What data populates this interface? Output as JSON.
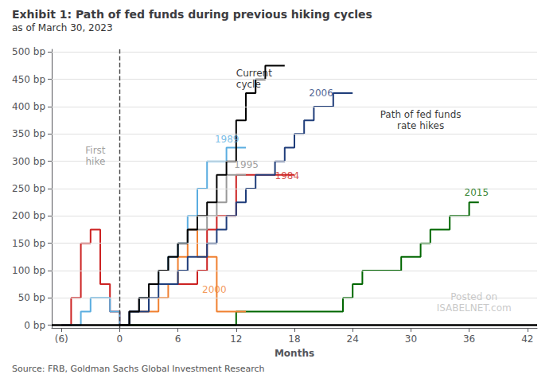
{
  "chart_data": {
    "type": "step",
    "title": "Exhibit 1: Path of fed funds during previous hiking cycles",
    "subtitle": "as of March 30, 2023",
    "source": "Source: FRB, Goldman Sachs Global Investment Research",
    "xlabel": "Months",
    "xlim": [
      -7,
      43
    ],
    "ylim": [
      -5,
      505
    ],
    "xticks": [
      {
        "value": -6,
        "label": "(6)"
      },
      0,
      6,
      12,
      18,
      24,
      30,
      36,
      42
    ],
    "yticks": [
      {
        "value": 0,
        "label": "0 bp"
      },
      {
        "value": 50,
        "label": "50 bp"
      },
      {
        "value": 100,
        "label": "100 bp"
      },
      {
        "value": 150,
        "label": "150 bp"
      },
      {
        "value": 200,
        "label": "200 bp"
      },
      {
        "value": 250,
        "label": "250 bp"
      },
      {
        "value": 300,
        "label": "300 bp"
      },
      {
        "value": 350,
        "label": "350 bp"
      },
      {
        "value": 400,
        "label": "400 bp"
      },
      {
        "value": 450,
        "label": "450 bp"
      },
      {
        "value": 500,
        "label": "500 bp"
      }
    ],
    "grid": true,
    "vline_x": 0,
    "hline_y": 0,
    "series": [
      {
        "color": "#006600",
        "x": [
          0,
          1,
          2,
          3,
          4,
          5,
          6,
          7,
          8,
          9,
          10,
          11,
          12,
          13,
          14,
          15,
          16,
          17,
          18,
          19,
          20,
          21,
          22,
          23,
          24,
          25,
          26,
          27,
          28,
          29,
          30,
          31,
          32,
          33,
          34,
          35,
          36,
          37
        ],
        "values": [
          0,
          0,
          0,
          0,
          0,
          0,
          0,
          0,
          0,
          0,
          0,
          0,
          25,
          25,
          25,
          25,
          25,
          25,
          25,
          25,
          25,
          25,
          25,
          50,
          75,
          100,
          100,
          100,
          100,
          125,
          125,
          150,
          175,
          175,
          200,
          200,
          225,
          225
        ],
        "annotation": {
          "text": "2015",
          "x": 35.5,
          "y": 232,
          "color": "#006600"
        }
      },
      {
        "color": "#f08030",
        "x": [
          0,
          1,
          2,
          3,
          4,
          5,
          6,
          7,
          8,
          9,
          10,
          11,
          12,
          13
        ],
        "values": [
          0,
          25,
          25,
          25,
          50,
          75,
          125,
          175,
          125,
          125,
          25,
          25,
          25,
          25
        ],
        "annotation": {
          "text": "2000",
          "x": 8.5,
          "y": 55,
          "color": "#f08030"
        }
      },
      {
        "color": "#cc2222",
        "x": [
          -6,
          -5,
          -4,
          -3,
          -2,
          -1,
          0,
          1,
          2,
          3,
          4,
          5,
          6,
          7,
          8,
          9,
          10,
          11,
          12,
          13,
          14,
          15,
          16,
          17,
          18
        ],
        "values": [
          0,
          50,
          150,
          175,
          75,
          25,
          0,
          25,
          50,
          75,
          75,
          75,
          75,
          75,
          100,
          175,
          200,
          200,
          275,
          275,
          275,
          275,
          275,
          275,
          275
        ],
        "annotation": {
          "text": "1984",
          "x": 16.0,
          "y": 263,
          "color": "#cc2222"
        }
      },
      {
        "color": "#999999",
        "x": [
          0,
          1,
          2,
          3,
          4,
          5,
          6,
          7,
          8,
          9,
          10,
          11,
          12,
          13
        ],
        "values": [
          0,
          25,
          50,
          75,
          100,
          125,
          150,
          175,
          175,
          200,
          225,
          275,
          275,
          275
        ],
        "annotation": {
          "text": "1995",
          "x": 11.8,
          "y": 283,
          "color": "#888888"
        }
      },
      {
        "color": "#5aade0",
        "x": [
          -6,
          -5,
          -4,
          -3,
          -2,
          -1,
          0,
          1,
          2,
          3,
          4,
          5,
          6,
          7,
          8,
          9,
          10,
          11,
          12,
          13
        ],
        "values": [
          0,
          0,
          25,
          50,
          50,
          25,
          0,
          25,
          50,
          75,
          100,
          125,
          150,
          200,
          250,
          300,
          300,
          325,
          325,
          325
        ],
        "annotation": {
          "text": "1989",
          "x": 9.8,
          "y": 330,
          "color": "#5aade0"
        }
      },
      {
        "color": "#1f3d7a",
        "x": [
          0,
          1,
          2,
          3,
          4,
          5,
          6,
          7,
          8,
          9,
          10,
          11,
          12,
          13,
          14,
          15,
          16,
          17,
          18,
          19,
          20,
          21,
          22,
          23,
          24
        ],
        "values": [
          0,
          25,
          25,
          50,
          75,
          75,
          100,
          125,
          125,
          150,
          175,
          200,
          225,
          250,
          275,
          275,
          300,
          325,
          350,
          375,
          400,
          400,
          425,
          425,
          425
        ],
        "annotation": {
          "text": "2006",
          "x": 19.5,
          "y": 415,
          "color": "#1f3d7a"
        }
      },
      {
        "color": "#000000",
        "x": [
          0,
          1,
          2,
          3,
          4,
          5,
          6,
          7,
          8,
          9,
          10,
          11,
          12,
          13,
          14,
          15,
          16,
          17
        ],
        "values": [
          0,
          25,
          50,
          75,
          100,
          125,
          150,
          175,
          200,
          225,
          275,
          300,
          375,
          425,
          450,
          475,
          475,
          475
        ],
        "annotation": {
          "text": "Current\ncycle",
          "x": 12.0,
          "y": 430,
          "color": "#000000"
        }
      }
    ],
    "annotations": [
      {
        "text": "First\nhike",
        "x": -2.5,
        "y": 310,
        "color": "#888888"
      },
      {
        "text": "Path of fed funds\nrate hikes",
        "x": 31,
        "y": 375,
        "color": "#000000"
      },
      {
        "text": "Posted on\nISABELNET.com",
        "x": 36.5,
        "y": 42,
        "color": "#bbbbbb"
      }
    ]
  }
}
